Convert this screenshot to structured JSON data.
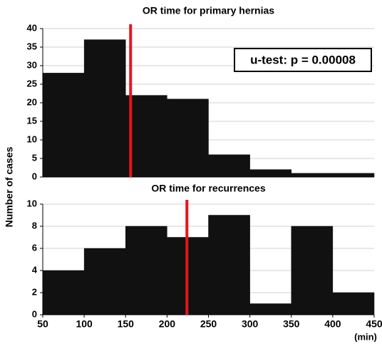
{
  "chart_data": [
    {
      "type": "histogram",
      "title": "OR time for primary hernias",
      "ylabel": "Number of cases",
      "bins": [
        50,
        100,
        150,
        200,
        250,
        300,
        350,
        400,
        450
      ],
      "values": [
        28,
        37,
        22,
        21,
        6,
        2,
        1,
        1
      ],
      "color": "#111111",
      "xlim": [
        50,
        450
      ],
      "ylim": [
        0,
        40
      ],
      "yticks": [
        0,
        5,
        10,
        15,
        20,
        25,
        30,
        35,
        40
      ],
      "grid": true,
      "vline": {
        "value": 156,
        "color": "#e8141a"
      },
      "annotation": "u-test: p = 0.00008"
    },
    {
      "type": "histogram",
      "title": "OR time for recurrences",
      "xlabel": "(min)",
      "bins": [
        50,
        100,
        150,
        200,
        250,
        300,
        350,
        400,
        450
      ],
      "values": [
        4,
        6,
        8,
        7,
        9,
        1,
        8,
        2
      ],
      "color": "#111111",
      "xlim": [
        50,
        450
      ],
      "ylim": [
        0,
        10
      ],
      "yticks": [
        0,
        2,
        4,
        6,
        8,
        10
      ],
      "xticks": [
        50,
        100,
        150,
        200,
        250,
        300,
        350,
        400,
        450
      ],
      "grid": true,
      "vline": {
        "value": 224,
        "color": "#e8141a"
      }
    }
  ]
}
